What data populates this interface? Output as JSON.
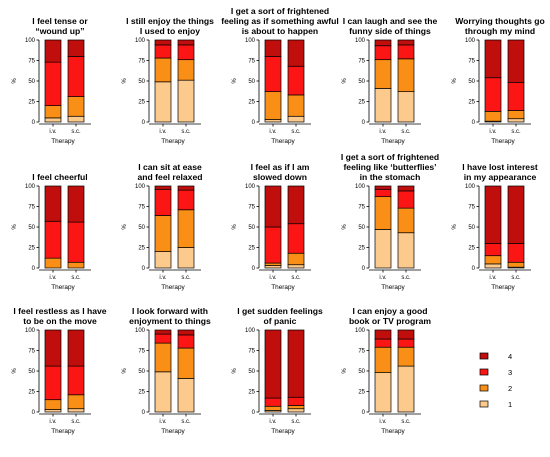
{
  "colors": {
    "1": "#fdca8e",
    "2": "#f98f16",
    "3": "#fc1515",
    "4": "#c00e0d"
  },
  "legend": {
    "items": [
      "4",
      "3",
      "2",
      "1"
    ]
  },
  "chart_data": [
    {
      "type": "bar",
      "stacked": true,
      "title": [
        "I feel tense or",
        "“wound up”"
      ],
      "xlabel": "Therapy",
      "ylabel": "%",
      "ylim": [
        0,
        100
      ],
      "yticks": [
        "0",
        "25",
        "50",
        "75",
        "100"
      ],
      "categories": [
        "i.v.",
        "s.c."
      ],
      "series": [
        {
          "name": "1",
          "values": [
            5,
            7
          ]
        },
        {
          "name": "2",
          "values": [
            15,
            24
          ]
        },
        {
          "name": "3",
          "values": [
            53,
            49
          ]
        },
        {
          "name": "4",
          "values": [
            27,
            20
          ]
        }
      ]
    },
    {
      "type": "bar",
      "stacked": true,
      "title": [
        "I still enjoy the things",
        "I used to enjoy"
      ],
      "xlabel": "Therapy",
      "ylabel": "%",
      "ylim": [
        0,
        100
      ],
      "yticks": [
        "0",
        "25",
        "50",
        "75",
        "100"
      ],
      "categories": [
        "i.v.",
        "s.c."
      ],
      "series": [
        {
          "name": "1",
          "values": [
            49,
            51
          ]
        },
        {
          "name": "2",
          "values": [
            29,
            25
          ]
        },
        {
          "name": "3",
          "values": [
            16,
            18
          ]
        },
        {
          "name": "4",
          "values": [
            6,
            6
          ]
        }
      ]
    },
    {
      "type": "bar",
      "stacked": true,
      "title": [
        "I get a sort of frightened",
        "feeling as if something awful",
        "is about to happen"
      ],
      "xlabel": "Therapy",
      "ylabel": "%",
      "ylim": [
        0,
        100
      ],
      "yticks": [
        "0",
        "25",
        "50",
        "75",
        "100"
      ],
      "categories": [
        "i.v.",
        "s.c."
      ],
      "series": [
        {
          "name": "1",
          "values": [
            3,
            7
          ]
        },
        {
          "name": "2",
          "values": [
            34,
            26
          ]
        },
        {
          "name": "3",
          "values": [
            43,
            35
          ]
        },
        {
          "name": "4",
          "values": [
            20,
            32
          ]
        }
      ]
    },
    {
      "type": "bar",
      "stacked": true,
      "title": [
        "I can laugh and see the",
        "funny side of things"
      ],
      "xlabel": "Therapy",
      "ylabel": "%",
      "ylim": [
        0,
        100
      ],
      "yticks": [
        "0",
        "25",
        "50",
        "75",
        "100"
      ],
      "categories": [
        "i.v.",
        "s.c."
      ],
      "series": [
        {
          "name": "1",
          "values": [
            41,
            37
          ]
        },
        {
          "name": "2",
          "values": [
            35,
            40
          ]
        },
        {
          "name": "3",
          "values": [
            17,
            17
          ]
        },
        {
          "name": "4",
          "values": [
            7,
            6
          ]
        }
      ]
    },
    {
      "type": "bar",
      "stacked": true,
      "title": [
        "Worrying thoughts go",
        "through my mind"
      ],
      "xlabel": "Therapy",
      "ylabel": "%",
      "ylim": [
        0,
        100
      ],
      "yticks": [
        "0",
        "25",
        "50",
        "75",
        "100"
      ],
      "categories": [
        "i.v.",
        "s.c."
      ],
      "series": [
        {
          "name": "1",
          "values": [
            1,
            4
          ]
        },
        {
          "name": "2",
          "values": [
            12,
            10
          ]
        },
        {
          "name": "3",
          "values": [
            41,
            34
          ]
        },
        {
          "name": "4",
          "values": [
            46,
            52
          ]
        }
      ]
    },
    {
      "type": "bar",
      "stacked": true,
      "title": [
        "I feel cheerful"
      ],
      "xlabel": "Therapy",
      "ylabel": "%",
      "ylim": [
        0,
        100
      ],
      "yticks": [
        "0",
        "25",
        "50",
        "75",
        "100"
      ],
      "categories": [
        "i.v.",
        "s.c."
      ],
      "series": [
        {
          "name": "1",
          "values": [
            0,
            0
          ]
        },
        {
          "name": "2",
          "values": [
            12,
            7
          ]
        },
        {
          "name": "3",
          "values": [
            45,
            49
          ]
        },
        {
          "name": "4",
          "values": [
            43,
            44
          ]
        }
      ]
    },
    {
      "type": "bar",
      "stacked": true,
      "title": [
        "I can sit at ease",
        "and feel relaxed"
      ],
      "xlabel": "Therapy",
      "ylabel": "%",
      "ylim": [
        0,
        100
      ],
      "yticks": [
        "0",
        "25",
        "50",
        "75",
        "100"
      ],
      "categories": [
        "i.v.",
        "s.c."
      ],
      "series": [
        {
          "name": "1",
          "values": [
            20,
            25
          ]
        },
        {
          "name": "2",
          "values": [
            44,
            46
          ]
        },
        {
          "name": "3",
          "values": [
            32,
            24
          ]
        },
        {
          "name": "4",
          "values": [
            4,
            5
          ]
        }
      ]
    },
    {
      "type": "bar",
      "stacked": true,
      "title": [
        "I feel as if I am",
        "slowed down"
      ],
      "xlabel": "Therapy",
      "ylabel": "%",
      "ylim": [
        0,
        100
      ],
      "yticks": [
        "0",
        "25",
        "50",
        "75",
        "100"
      ],
      "categories": [
        "i.v.",
        "s.c."
      ],
      "series": [
        {
          "name": "1",
          "values": [
            3,
            4
          ]
        },
        {
          "name": "2",
          "values": [
            3,
            14
          ]
        },
        {
          "name": "3",
          "values": [
            44,
            36
          ]
        },
        {
          "name": "4",
          "values": [
            50,
            46
          ]
        }
      ]
    },
    {
      "type": "bar",
      "stacked": true,
      "title": [
        "I get a sort of frightened",
        "feeling like ‘butterflies’",
        "in the stomach"
      ],
      "xlabel": "Therapy",
      "ylabel": "%",
      "ylim": [
        0,
        100
      ],
      "yticks": [
        "0",
        "25",
        "50",
        "75",
        "100"
      ],
      "categories": [
        "i.v.",
        "s.c."
      ],
      "series": [
        {
          "name": "1",
          "values": [
            47,
            43
          ]
        },
        {
          "name": "2",
          "values": [
            40,
            30
          ]
        },
        {
          "name": "3",
          "values": [
            9,
            21
          ]
        },
        {
          "name": "4",
          "values": [
            4,
            6
          ]
        }
      ]
    },
    {
      "type": "bar",
      "stacked": true,
      "title": [
        "I have lost interest",
        "in my appearance"
      ],
      "xlabel": "Therapy",
      "ylabel": "%",
      "ylim": [
        0,
        100
      ],
      "yticks": [
        "0",
        "25",
        "50",
        "75",
        "100"
      ],
      "categories": [
        "i.v.",
        "s.c."
      ],
      "series": [
        {
          "name": "1",
          "values": [
            5,
            1
          ]
        },
        {
          "name": "2",
          "values": [
            10,
            6
          ]
        },
        {
          "name": "3",
          "values": [
            15,
            23
          ]
        },
        {
          "name": "4",
          "values": [
            70,
            70
          ]
        }
      ]
    },
    {
      "type": "bar",
      "stacked": true,
      "title": [
        "I feel restless as I have",
        "to be on the move"
      ],
      "xlabel": "Therapy",
      "ylabel": "%",
      "ylim": [
        0,
        100
      ],
      "yticks": [
        "0",
        "25",
        "50",
        "75",
        "100"
      ],
      "categories": [
        "i.v.",
        "s.c."
      ],
      "series": [
        {
          "name": "1",
          "values": [
            3,
            4
          ]
        },
        {
          "name": "2",
          "values": [
            12,
            17
          ]
        },
        {
          "name": "3",
          "values": [
            41,
            35
          ]
        },
        {
          "name": "4",
          "values": [
            44,
            44
          ]
        }
      ]
    },
    {
      "type": "bar",
      "stacked": true,
      "title": [
        "I look forward with",
        "enjoyment to things"
      ],
      "xlabel": "Therapy",
      "ylabel": "%",
      "ylim": [
        0,
        100
      ],
      "yticks": [
        "0",
        "25",
        "50",
        "75",
        "100"
      ],
      "categories": [
        "i.v.",
        "s.c."
      ],
      "series": [
        {
          "name": "1",
          "values": [
            49,
            41
          ]
        },
        {
          "name": "2",
          "values": [
            35,
            37
          ]
        },
        {
          "name": "3",
          "values": [
            11,
            16
          ]
        },
        {
          "name": "4",
          "values": [
            5,
            6
          ]
        }
      ]
    },
    {
      "type": "bar",
      "stacked": true,
      "title": [
        "I get sudden feelings",
        "of panic"
      ],
      "xlabel": "Therapy",
      "ylabel": "%",
      "ylim": [
        0,
        100
      ],
      "yticks": [
        "0",
        "25",
        "50",
        "75",
        "100"
      ],
      "categories": [
        "i.v.",
        "s.c."
      ],
      "series": [
        {
          "name": "1",
          "values": [
            2,
            4
          ]
        },
        {
          "name": "2",
          "values": [
            5,
            4
          ]
        },
        {
          "name": "3",
          "values": [
            10,
            10
          ]
        },
        {
          "name": "4",
          "values": [
            83,
            82
          ]
        }
      ]
    },
    {
      "type": "bar",
      "stacked": true,
      "title": [
        "I can enjoy a good",
        "book or TV program"
      ],
      "xlabel": "Therapy",
      "ylabel": "%",
      "ylim": [
        0,
        100
      ],
      "yticks": [
        "0",
        "25",
        "50",
        "75",
        "100"
      ],
      "categories": [
        "i.v.",
        "s.c."
      ],
      "series": [
        {
          "name": "1",
          "values": [
            48,
            56
          ]
        },
        {
          "name": "2",
          "values": [
            31,
            23
          ]
        },
        {
          "name": "3",
          "values": [
            10,
            10
          ]
        },
        {
          "name": "4",
          "values": [
            11,
            11
          ]
        }
      ]
    }
  ]
}
